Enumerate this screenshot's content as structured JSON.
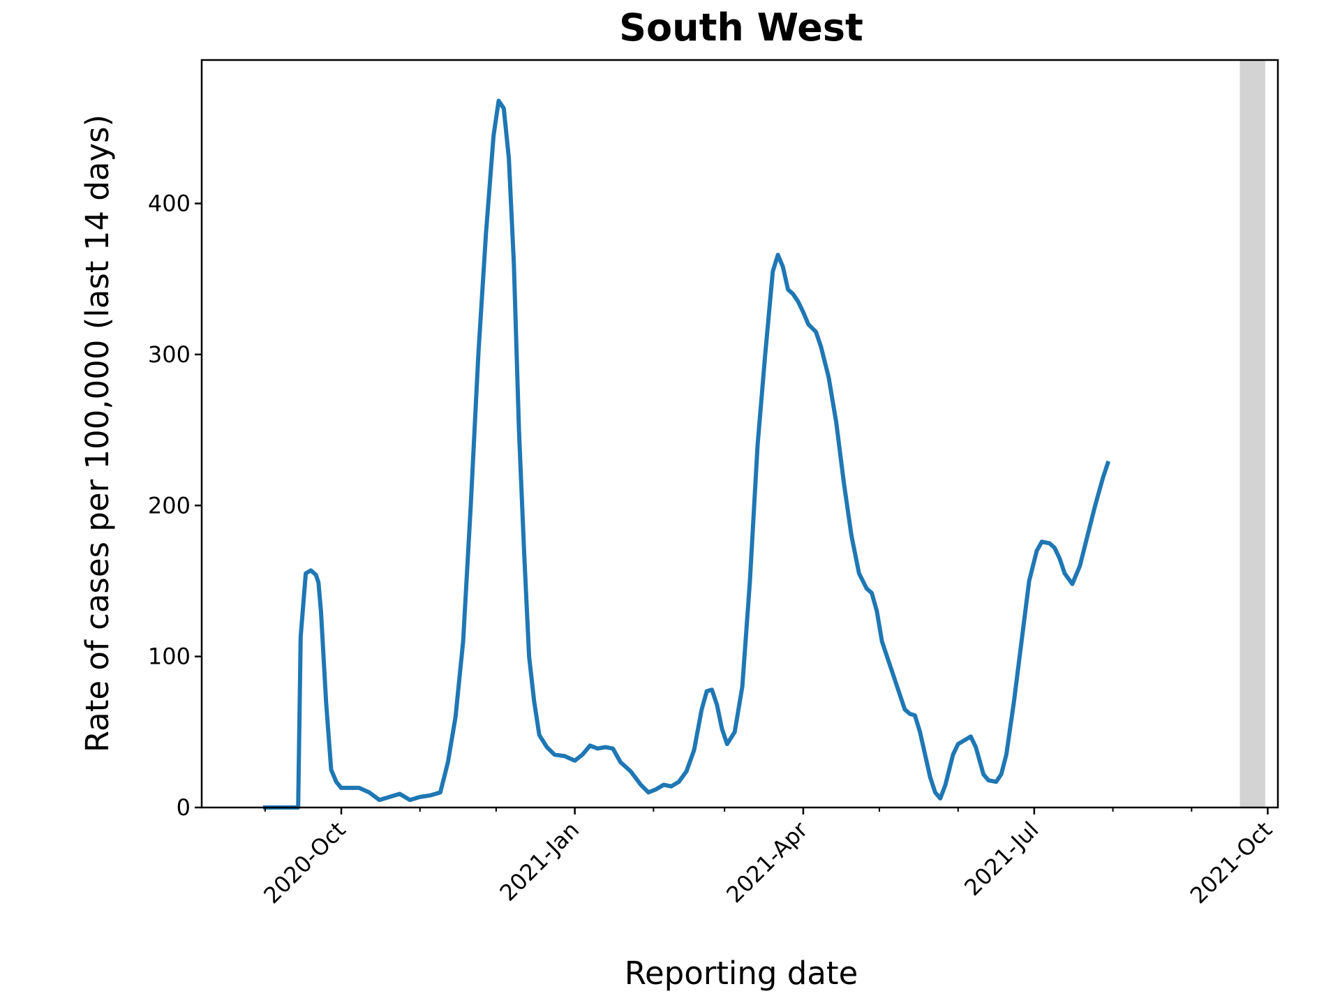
{
  "chart_data": {
    "type": "line",
    "title": "South West",
    "xlabel": "Reporting date",
    "ylabel": "Rate of cases per 100,000 (last 14 days)",
    "x_axis": {
      "type": "date",
      "range": [
        "2020-08-07",
        "2021-10-05"
      ]
    },
    "ylim": [
      0,
      495
    ],
    "yticks": [
      0,
      100,
      200,
      300,
      400
    ],
    "xticks": [
      {
        "date": "2020-10-01",
        "label": "2020-Oct"
      },
      {
        "date": "2021-01-01",
        "label": "2021-Jan"
      },
      {
        "date": "2021-04-01",
        "label": "2021-Apr"
      },
      {
        "date": "2021-07-01",
        "label": "2021-Jul"
      },
      {
        "date": "2021-10-01",
        "label": "2021-Oct"
      }
    ],
    "minor_xticks": [
      "2020-09-01",
      "2020-11-01",
      "2020-12-01",
      "2021-02-01",
      "2021-03-01",
      "2021-05-01",
      "2021-06-01",
      "2021-08-01",
      "2021-09-01"
    ],
    "shaded_region": {
      "start": "2021-09-20",
      "end": "2021-09-30",
      "color": "#d3d3d3"
    },
    "grid": false,
    "series": [
      {
        "color": "#1f77b4",
        "points": [
          [
            "2020-09-01",
            0
          ],
          [
            "2020-09-14",
            0
          ],
          [
            "2020-09-15",
            113
          ],
          [
            "2020-09-17",
            155
          ],
          [
            "2020-09-19",
            157
          ],
          [
            "2020-09-21",
            154
          ],
          [
            "2020-09-22",
            149
          ],
          [
            "2020-09-23",
            130
          ],
          [
            "2020-09-25",
            70
          ],
          [
            "2020-09-27",
            25
          ],
          [
            "2020-09-29",
            17
          ],
          [
            "2020-10-01",
            13
          ],
          [
            "2020-10-04",
            13
          ],
          [
            "2020-10-08",
            13
          ],
          [
            "2020-10-12",
            10
          ],
          [
            "2020-10-16",
            5
          ],
          [
            "2020-10-20",
            7
          ],
          [
            "2020-10-24",
            9
          ],
          [
            "2020-10-28",
            5
          ],
          [
            "2020-11-01",
            7
          ],
          [
            "2020-11-05",
            8
          ],
          [
            "2020-11-09",
            10
          ],
          [
            "2020-11-12",
            30
          ],
          [
            "2020-11-15",
            60
          ],
          [
            "2020-11-18",
            110
          ],
          [
            "2020-11-21",
            200
          ],
          [
            "2020-11-24",
            300
          ],
          [
            "2020-11-27",
            380
          ],
          [
            "2020-11-30",
            445
          ],
          [
            "2020-12-02",
            468
          ],
          [
            "2020-12-04",
            463
          ],
          [
            "2020-12-06",
            430
          ],
          [
            "2020-12-08",
            360
          ],
          [
            "2020-12-10",
            250
          ],
          [
            "2020-12-12",
            170
          ],
          [
            "2020-12-14",
            100
          ],
          [
            "2020-12-16",
            70
          ],
          [
            "2020-12-18",
            48
          ],
          [
            "2020-12-21",
            40
          ],
          [
            "2020-12-24",
            35
          ],
          [
            "2020-12-28",
            34
          ],
          [
            "2021-01-01",
            31
          ],
          [
            "2021-01-04",
            35
          ],
          [
            "2021-01-07",
            41
          ],
          [
            "2021-01-10",
            39
          ],
          [
            "2021-01-13",
            40
          ],
          [
            "2021-01-16",
            39
          ],
          [
            "2021-01-19",
            30
          ],
          [
            "2021-01-23",
            24
          ],
          [
            "2021-01-27",
            15
          ],
          [
            "2021-01-30",
            10
          ],
          [
            "2021-02-02",
            12
          ],
          [
            "2021-02-05",
            15
          ],
          [
            "2021-02-08",
            14
          ],
          [
            "2021-02-11",
            17
          ],
          [
            "2021-02-14",
            24
          ],
          [
            "2021-02-17",
            38
          ],
          [
            "2021-02-20",
            65
          ],
          [
            "2021-02-22",
            77
          ],
          [
            "2021-02-24",
            78
          ],
          [
            "2021-02-26",
            68
          ],
          [
            "2021-02-28",
            52
          ],
          [
            "2021-03-02",
            42
          ],
          [
            "2021-03-05",
            50
          ],
          [
            "2021-03-08",
            80
          ],
          [
            "2021-03-11",
            150
          ],
          [
            "2021-03-14",
            240
          ],
          [
            "2021-03-17",
            300
          ],
          [
            "2021-03-20",
            355
          ],
          [
            "2021-03-22",
            366
          ],
          [
            "2021-03-24",
            358
          ],
          [
            "2021-03-26",
            343
          ],
          [
            "2021-03-28",
            340
          ],
          [
            "2021-03-30",
            335
          ],
          [
            "2021-04-01",
            328
          ],
          [
            "2021-04-03",
            320
          ],
          [
            "2021-04-06",
            315
          ],
          [
            "2021-04-08",
            305
          ],
          [
            "2021-04-11",
            285
          ],
          [
            "2021-04-14",
            255
          ],
          [
            "2021-04-17",
            215
          ],
          [
            "2021-04-20",
            180
          ],
          [
            "2021-04-23",
            155
          ],
          [
            "2021-04-26",
            145
          ],
          [
            "2021-04-28",
            142
          ],
          [
            "2021-04-30",
            130
          ],
          [
            "2021-05-02",
            110
          ],
          [
            "2021-05-05",
            95
          ],
          [
            "2021-05-08",
            80
          ],
          [
            "2021-05-11",
            65
          ],
          [
            "2021-05-13",
            62
          ],
          [
            "2021-05-15",
            61
          ],
          [
            "2021-05-17",
            50
          ],
          [
            "2021-05-19",
            35
          ],
          [
            "2021-05-21",
            20
          ],
          [
            "2021-05-23",
            10
          ],
          [
            "2021-05-25",
            6
          ],
          [
            "2021-05-27",
            15
          ],
          [
            "2021-05-30",
            35
          ],
          [
            "2021-06-01",
            42
          ],
          [
            "2021-06-03",
            44
          ],
          [
            "2021-06-06",
            47
          ],
          [
            "2021-06-08",
            40
          ],
          [
            "2021-06-11",
            22
          ],
          [
            "2021-06-13",
            18
          ],
          [
            "2021-06-16",
            17
          ],
          [
            "2021-06-18",
            22
          ],
          [
            "2021-06-20",
            35
          ],
          [
            "2021-06-23",
            70
          ],
          [
            "2021-06-26",
            110
          ],
          [
            "2021-06-29",
            150
          ],
          [
            "2021-07-02",
            170
          ],
          [
            "2021-07-04",
            176
          ],
          [
            "2021-07-07",
            175
          ],
          [
            "2021-07-09",
            172
          ],
          [
            "2021-07-11",
            165
          ],
          [
            "2021-07-13",
            155
          ],
          [
            "2021-07-16",
            148
          ],
          [
            "2021-07-19",
            160
          ],
          [
            "2021-07-22",
            180
          ],
          [
            "2021-07-25",
            200
          ],
          [
            "2021-07-28",
            218
          ],
          [
            "2021-07-30",
            228
          ]
        ]
      }
    ]
  }
}
